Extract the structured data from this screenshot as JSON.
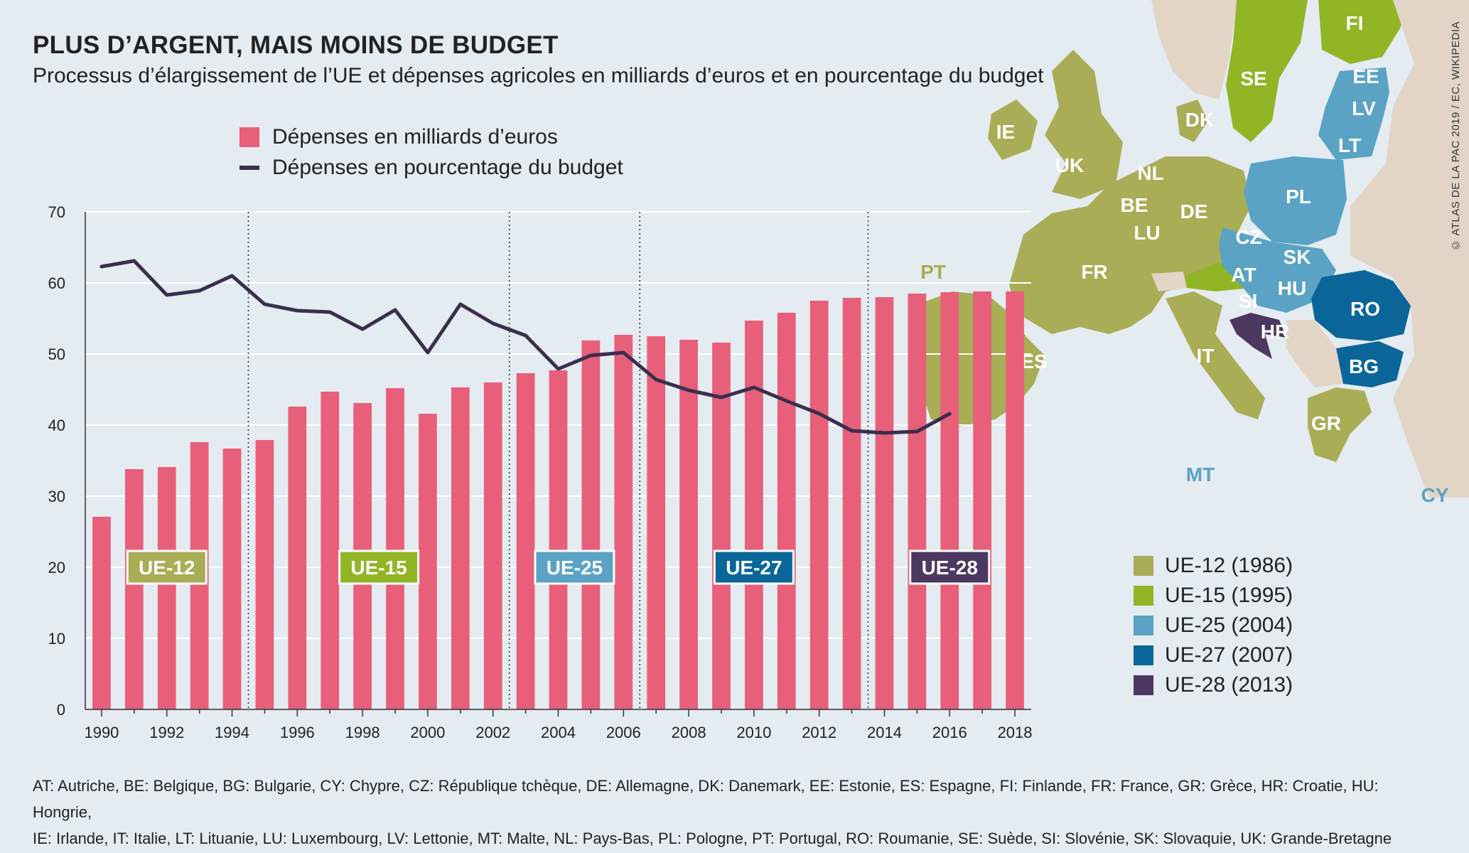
{
  "title": "PLUS D’ARGENT, MAIS MOINS DE BUDGET",
  "subtitle": "Processus d’élargissement de l’UE et dépenses agricoles en milliards d’euros et en pourcentage du budget",
  "credit": "© ATLAS DE LA PAC 2019 / EC, WIKIPEDIA",
  "footnote_line1": "AT: Autriche, BE: Belgique, BG: Bulgarie, CY: Chypre, CZ: République tchèque, DE: Allemagne, DK: Danemark, EE: Estonie, ES: Espagne, FI: Finlande, FR: France, GR: Grèce, HR: Croatie, HU: Hongrie,",
  "footnote_line2": "IE: Irlande, IT: Italie, LT: Lituanie, LU: Luxembourg, LV: Lettonie, MT: Malte, NL: Pays-Bas, PL: Pologne, PT: Portugal, RO: Roumanie, SE: Suède, SI: Slovénie, SK: Slovaquie, UK: Grande-Bretagne",
  "colors": {
    "bar": "#e85f7a",
    "line": "#3a2e4d",
    "ue12": "#a9ad55",
    "ue15": "#92b526",
    "ue25": "#5aa3c4",
    "ue27": "#0a6699",
    "ue28": "#4b3760",
    "non_eu": "#e2d5c6",
    "sea": "#e4ebf1"
  },
  "chart_data": {
    "type": "bar",
    "x": [
      1990,
      1991,
      1992,
      1993,
      1994,
      1995,
      1996,
      1997,
      1998,
      1999,
      2000,
      2001,
      2002,
      2003,
      2004,
      2005,
      2006,
      2007,
      2008,
      2009,
      2010,
      2011,
      2012,
      2013,
      2014,
      2015,
      2016,
      2017,
      2018
    ],
    "x_ticks": [
      1990,
      1992,
      1994,
      1996,
      1998,
      2000,
      2002,
      2004,
      2006,
      2008,
      2010,
      2012,
      2014,
      2016,
      2018
    ],
    "y_ticks": [
      0,
      10,
      20,
      30,
      40,
      50,
      60,
      70
    ],
    "ylim": [
      0,
      70
    ],
    "grid": "horizontal",
    "series": [
      {
        "name": "Dépenses en milliards d’euros",
        "type": "bar",
        "values": [
          27.1,
          33.8,
          34.1,
          37.6,
          36.7,
          37.9,
          42.6,
          44.7,
          43.1,
          45.2,
          41.6,
          45.3,
          46.0,
          47.3,
          47.7,
          51.9,
          52.7,
          52.5,
          52.0,
          51.6,
          54.7,
          55.8,
          57.5,
          57.9,
          58.0,
          58.5,
          58.7,
          58.8,
          58.8
        ]
      },
      {
        "name": "Dépenses en pourcentage du budget",
        "type": "line",
        "x": [
          1990,
          1991,
          1992,
          1993,
          1994,
          1995,
          1996,
          1997,
          1998,
          1999,
          2000,
          2001,
          2002,
          2003,
          2004,
          2005,
          2006,
          2007,
          2008,
          2009,
          2010,
          2011,
          2012,
          2013,
          2014,
          2015,
          2016
        ],
        "values": [
          62.3,
          63.1,
          58.3,
          58.9,
          61.0,
          57.0,
          56.1,
          55.9,
          53.5,
          56.2,
          50.2,
          57.0,
          54.3,
          52.6,
          47.9,
          49.8,
          50.2,
          46.4,
          44.9,
          43.9,
          45.3,
          43.4,
          41.6,
          39.2,
          38.9,
          39.1,
          41.6
        ]
      }
    ],
    "phases": [
      {
        "label": "UE-12",
        "color": "#a9ad55",
        "start": 1989.5,
        "end": 1994.5
      },
      {
        "label": "UE-15",
        "color": "#92b526",
        "start": 1994.5,
        "end": 2002.5
      },
      {
        "label": "UE-25",
        "color": "#5aa3c4",
        "start": 2002.5,
        "end": 2006.5
      },
      {
        "label": "UE-27",
        "color": "#0a6699",
        "start": 2006.5,
        "end": 2013.5
      },
      {
        "label": "UE-28",
        "color": "#4b3760",
        "start": 2013.5,
        "end": 2018.5
      }
    ],
    "phase_boundaries": [
      1994.5,
      2002.5,
      2006.5,
      2013.5
    ]
  },
  "phase_legend": [
    {
      "label": "UE-12 (1986)",
      "color": "#a9ad55"
    },
    {
      "label": "UE-15 (1995)",
      "color": "#92b526"
    },
    {
      "label": "UE-25 (2004)",
      "color": "#5aa3c4"
    },
    {
      "label": "UE-27 (2007)",
      "color": "#0a6699"
    },
    {
      "label": "UE-28 (2013)",
      "color": "#4b3760"
    }
  ],
  "map_labels": [
    {
      "text": "IE",
      "group": "ue12"
    },
    {
      "text": "UK",
      "group": "ue12"
    },
    {
      "text": "DK",
      "group": "ue12"
    },
    {
      "text": "NL",
      "group": "ue12"
    },
    {
      "text": "BE",
      "group": "ue12"
    },
    {
      "text": "LU",
      "group": "ue12"
    },
    {
      "text": "DE",
      "group": "ue12"
    },
    {
      "text": "FR",
      "group": "ue12"
    },
    {
      "text": "ES",
      "group": "ue12"
    },
    {
      "text": "PT",
      "group": "ue12"
    },
    {
      "text": "IT",
      "group": "ue12"
    },
    {
      "text": "GR",
      "group": "ue12"
    },
    {
      "text": "SE",
      "group": "ue15"
    },
    {
      "text": "FI",
      "group": "ue15"
    },
    {
      "text": "AT",
      "group": "ue15"
    },
    {
      "text": "EE",
      "group": "ue25"
    },
    {
      "text": "LV",
      "group": "ue25"
    },
    {
      "text": "LT",
      "group": "ue25"
    },
    {
      "text": "PL",
      "group": "ue25"
    },
    {
      "text": "CZ",
      "group": "ue25"
    },
    {
      "text": "SK",
      "group": "ue25"
    },
    {
      "text": "HU",
      "group": "ue25"
    },
    {
      "text": "SI",
      "group": "ue25"
    },
    {
      "text": "MT",
      "group": "ue25"
    },
    {
      "text": "CY",
      "group": "ue25"
    },
    {
      "text": "RO",
      "group": "ue27"
    },
    {
      "text": "BG",
      "group": "ue27"
    },
    {
      "text": "HR",
      "group": "ue28"
    }
  ]
}
